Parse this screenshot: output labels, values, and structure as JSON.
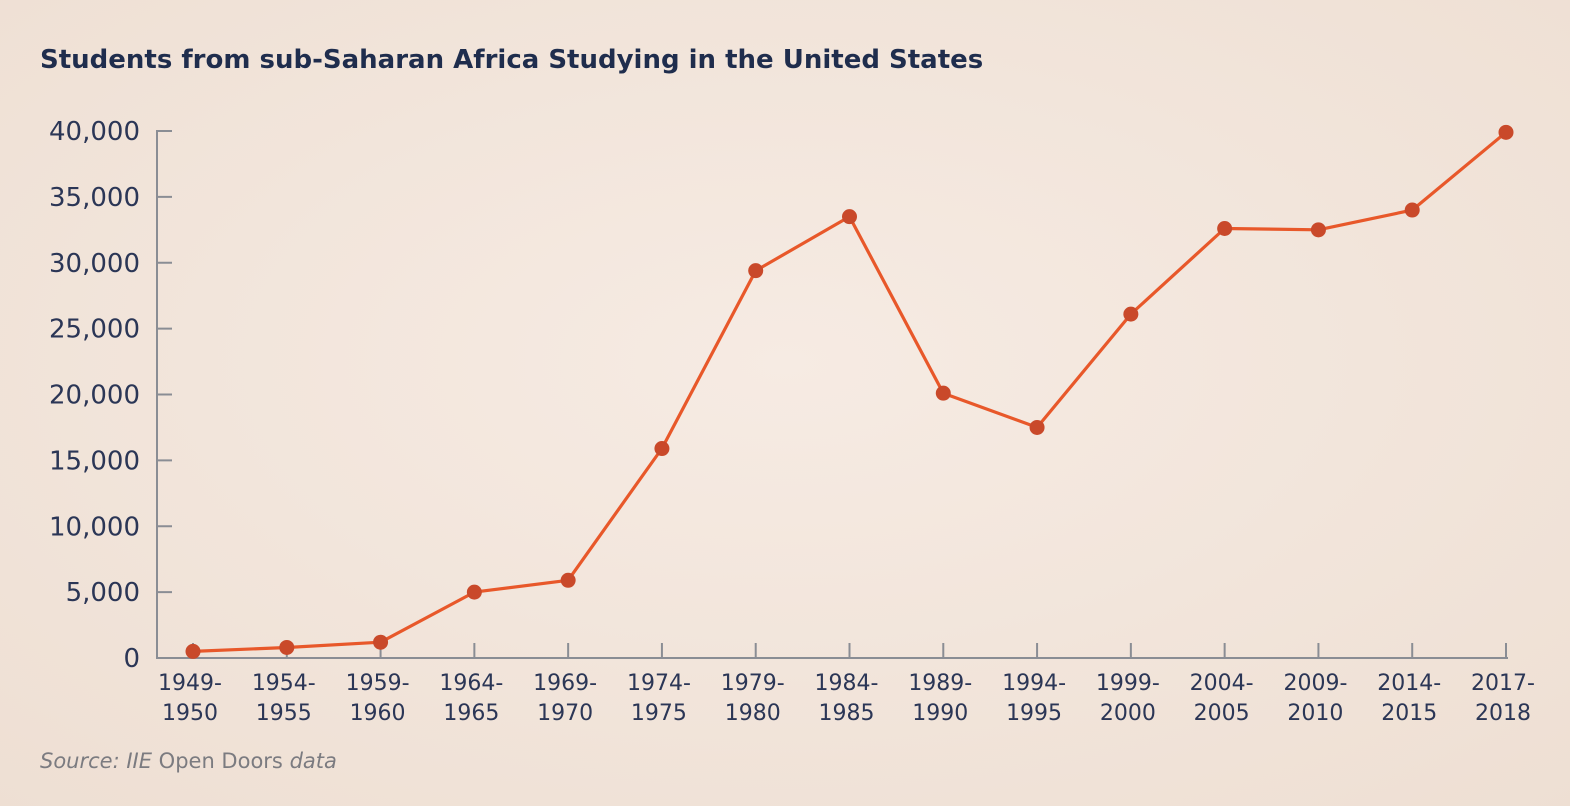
{
  "chart_data": {
    "type": "line",
    "title": "Students from sub-Saharan Africa Studying in the United States",
    "xlabel": "",
    "ylabel": "",
    "categories": [
      [
        "1949-",
        "1950"
      ],
      [
        "1954-",
        "1955"
      ],
      [
        "1959-",
        "1960"
      ],
      [
        "1964-",
        "1965"
      ],
      [
        "1969-",
        "1970"
      ],
      [
        "1974-",
        "1975"
      ],
      [
        "1979-",
        "1980"
      ],
      [
        "1984-",
        "1985"
      ],
      [
        "1989-",
        "1990"
      ],
      [
        "1994-",
        "1995"
      ],
      [
        "1999-",
        "2000"
      ],
      [
        "2004-",
        "2005"
      ],
      [
        "2009-",
        "2010"
      ],
      [
        "2014-",
        "2015"
      ],
      [
        "2017-",
        "2018"
      ]
    ],
    "series": [
      {
        "values": [
          500,
          800,
          1200,
          5000,
          5900,
          15900,
          29400,
          33500,
          20100,
          17500,
          26100,
          32600,
          32500,
          34000,
          39900
        ]
      }
    ],
    "ylim": [
      0,
      40000
    ],
    "yticks": [
      "0",
      "5,000",
      "10,000",
      "15,000",
      "20,000",
      "25,000",
      "30,000",
      "35,000",
      "40,000"
    ],
    "grid": false,
    "legend": "none",
    "colors": {
      "line": "#e8582a",
      "marker": "#c9492a",
      "axis": "#8a8d94",
      "text": "#2b3656",
      "background": "#f3e6dc"
    }
  },
  "source": {
    "italic_1": "Source: IIE ",
    "normal": "Open Doors",
    "italic_2": " data"
  }
}
